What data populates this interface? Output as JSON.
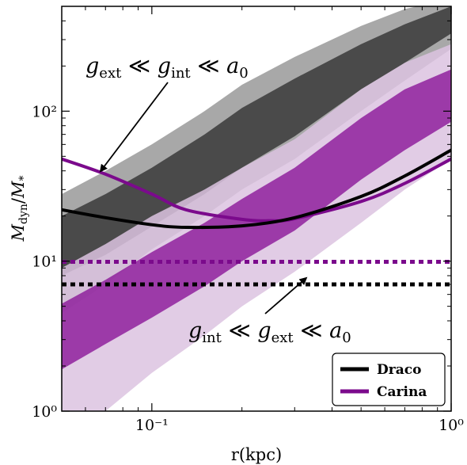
{
  "chart_data": {
    "type": "line",
    "title": "",
    "xlabel": "r(kpc)",
    "ylabel": "M_dyn/M_*",
    "xscale": "log",
    "yscale": "log",
    "xlim": [
      0.05,
      1.0
    ],
    "ylim": [
      1,
      500
    ],
    "grid": false,
    "legend_position": "bottom-right",
    "x_ticks": [
      {
        "value": 0.1,
        "label": "10⁻¹"
      },
      {
        "value": 1.0,
        "label": "10⁰"
      }
    ],
    "y_ticks": [
      {
        "value": 1,
        "label": "10⁰"
      },
      {
        "value": 10,
        "label": "10¹"
      },
      {
        "value": 100,
        "label": "10²"
      }
    ],
    "series": [
      {
        "name": "Draco",
        "color": "#000000",
        "x": [
          0.05,
          0.07,
          0.1,
          0.13,
          0.2,
          0.3,
          0.5,
          0.7,
          1.0
        ],
        "y": [
          22,
          19.5,
          17.5,
          16.8,
          17.2,
          19.5,
          27,
          37,
          55
        ]
      },
      {
        "name": "Carina",
        "color": "#7b0a8c",
        "x": [
          0.05,
          0.07,
          0.1,
          0.13,
          0.2,
          0.25,
          0.3,
          0.5,
          0.7,
          1.0
        ],
        "y": [
          48,
          38,
          28,
          22,
          19,
          18.6,
          19.2,
          25,
          33,
          48
        ]
      }
    ],
    "reference_lines": [
      {
        "series": "Carina",
        "y": 9.9,
        "style": "dotted"
      },
      {
        "series": "Draco",
        "y": 7.0,
        "style": "dotted"
      }
    ],
    "bands": [
      {
        "series": "Draco",
        "level": "outer",
        "x": [
          0.05,
          0.07,
          0.1,
          0.15,
          0.2,
          0.3,
          0.5,
          0.7,
          1.0
        ],
        "lower": [
          4.5,
          7,
          12,
          20,
          30,
          48,
          100,
          160,
          260
        ],
        "upper": [
          28,
          40,
          60,
          100,
          150,
          230,
          370,
          480,
          560
        ]
      },
      {
        "series": "Draco",
        "level": "inner",
        "x": [
          0.05,
          0.07,
          0.1,
          0.15,
          0.2,
          0.3,
          0.5,
          0.7,
          1.0
        ],
        "lower": [
          8,
          11,
          17,
          28,
          42,
          68,
          140,
          210,
          330
        ],
        "upper": [
          20,
          28,
          42,
          70,
          105,
          165,
          280,
          380,
          500
        ]
      },
      {
        "series": "Carina",
        "level": "outer",
        "x": [
          0.05,
          0.07,
          0.1,
          0.15,
          0.2,
          0.3,
          0.5,
          0.7,
          1.0
        ],
        "lower": [
          0.6,
          1.0,
          1.8,
          3.2,
          5,
          8.5,
          18,
          30,
          48
        ],
        "upper": [
          9,
          13,
          20,
          30,
          42,
          65,
          140,
          210,
          280
        ]
      },
      {
        "series": "Carina",
        "level": "inner",
        "x": [
          0.05,
          0.07,
          0.1,
          0.15,
          0.2,
          0.3,
          0.5,
          0.7,
          1.0
        ],
        "lower": [
          1.9,
          2.8,
          4.2,
          6.8,
          10,
          16,
          35,
          55,
          85
        ],
        "upper": [
          5.2,
          7.5,
          11.5,
          18,
          26,
          42,
          90,
          140,
          190
        ]
      }
    ],
    "annotations": [
      {
        "text_parts": [
          "g",
          "ext",
          " ≪ ",
          "g",
          "int",
          " ≪ ",
          "a",
          "0"
        ],
        "arrow_to": {
          "x": 0.065,
          "y": 37
        }
      },
      {
        "text_parts": [
          "g",
          "int",
          " ≪ ",
          "g",
          "ext",
          " ≪ ",
          "a",
          "0"
        ],
        "arrow_to": {
          "x": 0.32,
          "y": 7.0
        }
      }
    ],
    "legend": [
      "Draco",
      "Carina"
    ],
    "colors": {
      "draco_outer": "#a8a8a8",
      "draco_inner": "#4a4a4a",
      "carina_outer": "#dcc3e0",
      "carina_inner": "#8c1a9a",
      "carina_mid": "#b87fc4"
    }
  }
}
